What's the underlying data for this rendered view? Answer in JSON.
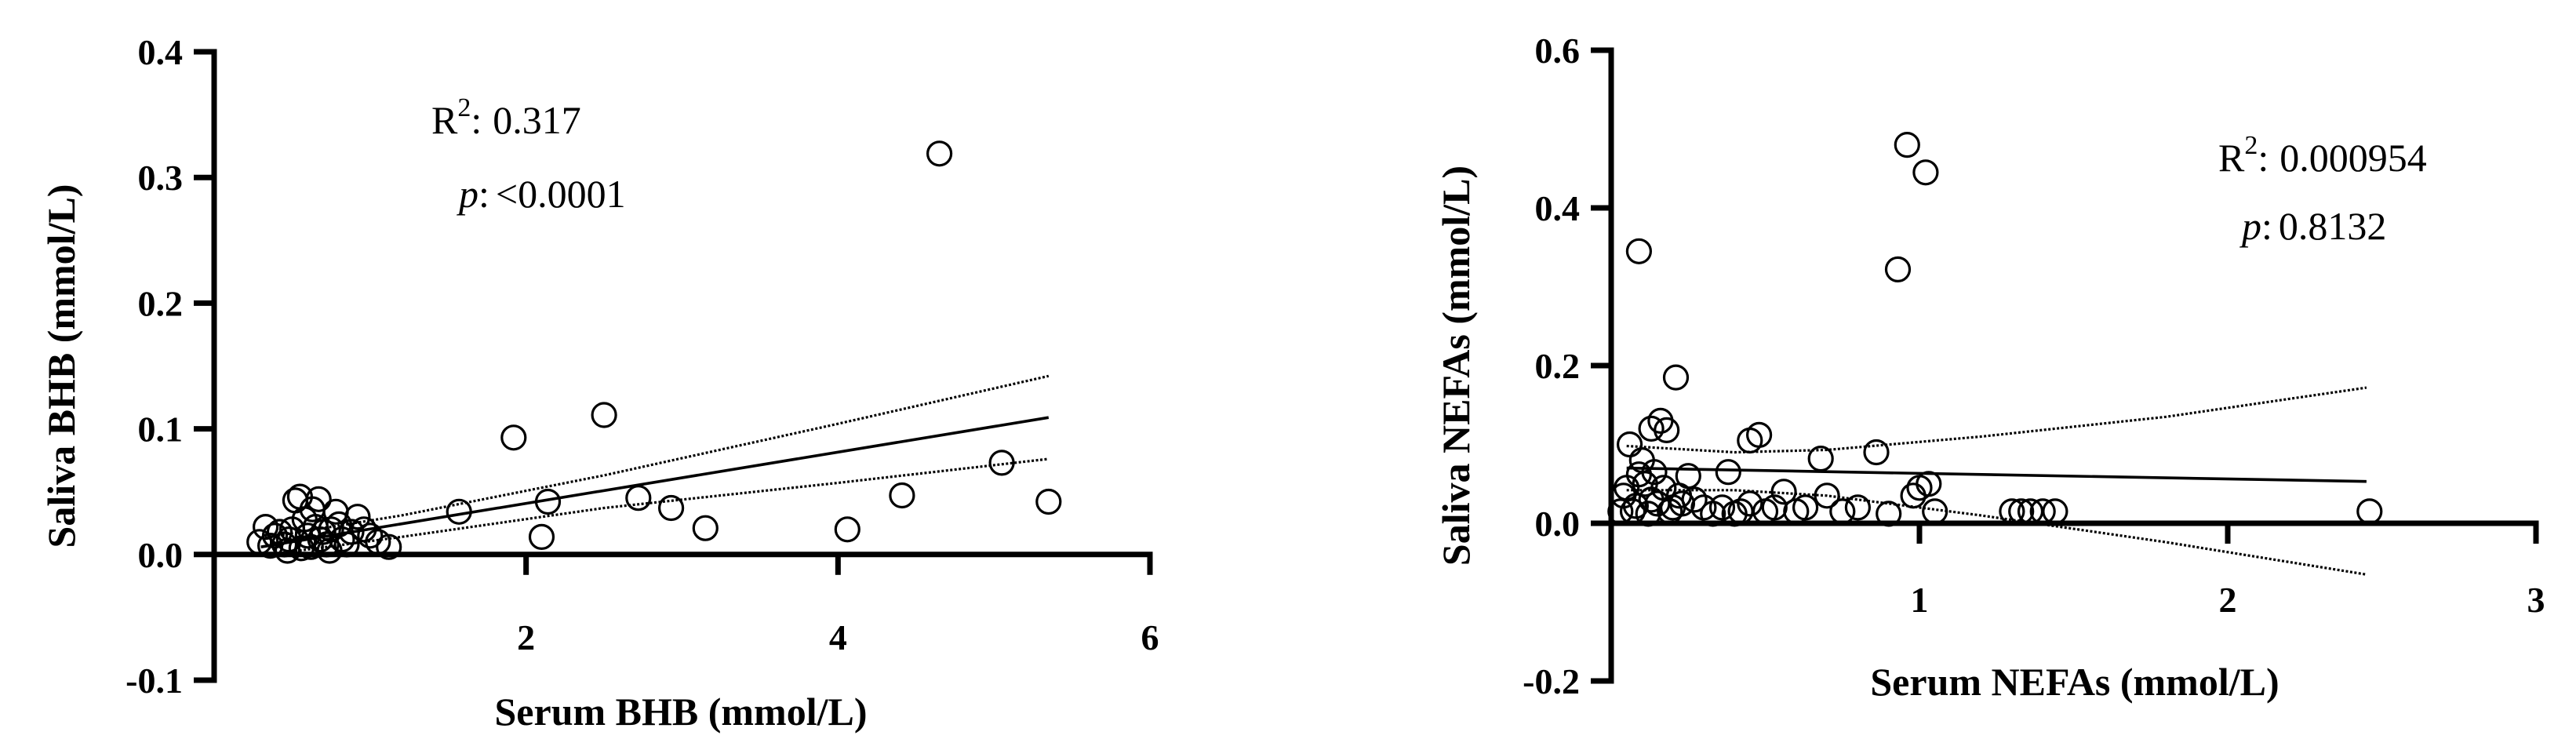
{
  "chart_data": [
    {
      "type": "scatter",
      "xlabel": "Serum BHB (mmol/L)",
      "ylabel": "Saliva BHB (mmol/L)",
      "xlim": [
        0,
        6
      ],
      "ylim": [
        -0.1,
        0.4
      ],
      "x_ticks": [
        "2",
        "4",
        "6"
      ],
      "y_ticks": [
        "-0.1",
        "0.0",
        "0.1",
        "0.2",
        "0.3",
        "0.4"
      ],
      "x_tick_values": [
        2,
        4,
        6
      ],
      "y_tick_values": [
        -0.1,
        0.0,
        0.1,
        0.2,
        0.3,
        0.4
      ],
      "stats": {
        "r2_label": "R",
        "r2_sup": "2",
        "r2_sep": ":",
        "r2_value": "0.317",
        "p_label": "p",
        "p_sep": ":",
        "p_value": "<0.0001"
      },
      "fit_line": {
        "x": [
          0.3,
          5.35
        ],
        "y": [
          0.006,
          0.109
        ]
      },
      "ci_upper": {
        "x": [
          0.3,
          1.2,
          2.5,
          4.0,
          5.35
        ],
        "y": [
          0.013,
          0.031,
          0.063,
          0.104,
          0.142
        ]
      },
      "ci_lower": {
        "x": [
          0.3,
          1.2,
          2.5,
          4.0,
          5.35
        ],
        "y": [
          -0.001,
          0.014,
          0.037,
          0.057,
          0.076
        ]
      },
      "series": [
        {
          "points": [
            [
              0.29,
              0.01
            ],
            [
              0.33,
              0.022
            ],
            [
              0.36,
              0.007
            ],
            [
              0.39,
              0.015
            ],
            [
              0.42,
              0.018
            ],
            [
              0.45,
              0.008
            ],
            [
              0.47,
              0.003
            ],
            [
              0.48,
              0.012
            ],
            [
              0.5,
              0.02
            ],
            [
              0.52,
              0.043
            ],
            [
              0.55,
              0.046
            ],
            [
              0.56,
              0.005
            ],
            [
              0.58,
              0.028
            ],
            [
              0.6,
              0.015
            ],
            [
              0.62,
              0.006
            ],
            [
              0.63,
              0.036
            ],
            [
              0.65,
              0.022
            ],
            [
              0.67,
              0.044
            ],
            [
              0.68,
              0.012
            ],
            [
              0.7,
              0.018
            ],
            [
              0.72,
              0.008
            ],
            [
              0.74,
              0.003
            ],
            [
              0.75,
              0.02
            ],
            [
              0.78,
              0.034
            ],
            [
              0.8,
              0.024
            ],
            [
              0.82,
              0.012
            ],
            [
              0.85,
              0.008
            ],
            [
              0.88,
              0.018
            ],
            [
              0.92,
              0.03
            ],
            [
              0.96,
              0.02
            ],
            [
              1.0,
              0.015
            ],
            [
              1.05,
              0.01
            ],
            [
              1.12,
              0.006
            ],
            [
              1.57,
              0.034
            ],
            [
              1.92,
              0.093
            ],
            [
              2.1,
              0.014
            ],
            [
              2.14,
              0.042
            ],
            [
              2.5,
              0.111
            ],
            [
              2.72,
              0.045
            ],
            [
              2.93,
              0.037
            ],
            [
              3.15,
              0.021
            ],
            [
              4.06,
              0.02
            ],
            [
              4.41,
              0.047
            ],
            [
              4.65,
              0.319
            ],
            [
              5.05,
              0.073
            ],
            [
              5.35,
              0.042
            ]
          ]
        }
      ]
    },
    {
      "type": "scatter",
      "xlabel": "Serum NEFAs (mmol/L)",
      "ylabel": "Saliva NEFAs (mmol/L)",
      "xlim": [
        0,
        3
      ],
      "ylim": [
        -0.2,
        0.6
      ],
      "x_ticks": [
        "1",
        "2",
        "3"
      ],
      "y_ticks": [
        "-0.2",
        "0.0",
        "0.2",
        "0.4",
        "0.6"
      ],
      "x_tick_values": [
        1,
        2,
        3
      ],
      "y_tick_values": [
        -0.2,
        0.0,
        0.2,
        0.4,
        0.6
      ],
      "stats": {
        "r2_label": "R",
        "r2_sup": "2",
        "r2_sep": ":",
        "r2_value": "0.000954",
        "p_label": "p",
        "p_sep": ":",
        "p_value": "0.8132"
      },
      "fit_line": {
        "x": [
          0.05,
          2.45
        ],
        "y": [
          0.07,
          0.053
        ]
      },
      "ci_upper": {
        "x": [
          0.05,
          0.4,
          0.7,
          1.2,
          1.8,
          2.45
        ],
        "y": [
          0.098,
          0.09,
          0.093,
          0.11,
          0.135,
          0.172
        ]
      },
      "ci_lower": {
        "x": [
          0.05,
          0.4,
          0.7,
          1.2,
          1.8,
          2.45
        ],
        "y": [
          0.042,
          0.042,
          0.035,
          0.01,
          -0.024,
          -0.065
        ]
      },
      "series": [
        {
          "points": [
            [
              0.03,
              0.015
            ],
            [
              0.04,
              0.035
            ],
            [
              0.05,
              0.045
            ],
            [
              0.06,
              0.1
            ],
            [
              0.07,
              0.015
            ],
            [
              0.08,
              0.022
            ],
            [
              0.09,
              0.062
            ],
            [
              0.09,
              0.345
            ],
            [
              0.1,
              0.08
            ],
            [
              0.11,
              0.05
            ],
            [
              0.12,
              0.012
            ],
            [
              0.13,
              0.03
            ],
            [
              0.13,
              0.12
            ],
            [
              0.14,
              0.065
            ],
            [
              0.15,
              0.025
            ],
            [
              0.16,
              0.13
            ],
            [
              0.17,
              0.045
            ],
            [
              0.18,
              0.118
            ],
            [
              0.19,
              0.015
            ],
            [
              0.2,
              0.02
            ],
            [
              0.21,
              0.185
            ],
            [
              0.22,
              0.035
            ],
            [
              0.23,
              0.025
            ],
            [
              0.25,
              0.06
            ],
            [
              0.27,
              0.03
            ],
            [
              0.3,
              0.02
            ],
            [
              0.33,
              0.012
            ],
            [
              0.36,
              0.02
            ],
            [
              0.38,
              0.065
            ],
            [
              0.4,
              0.012
            ],
            [
              0.42,
              0.015
            ],
            [
              0.45,
              0.025
            ],
            [
              0.45,
              0.105
            ],
            [
              0.48,
              0.112
            ],
            [
              0.5,
              0.015
            ],
            [
              0.53,
              0.02
            ],
            [
              0.56,
              0.04
            ],
            [
              0.6,
              0.015
            ],
            [
              0.63,
              0.02
            ],
            [
              0.68,
              0.082
            ],
            [
              0.7,
              0.035
            ],
            [
              0.75,
              0.015
            ],
            [
              0.8,
              0.02
            ],
            [
              0.86,
              0.09
            ],
            [
              0.9,
              0.012
            ],
            [
              0.93,
              0.322
            ],
            [
              0.96,
              0.48
            ],
            [
              0.98,
              0.035
            ],
            [
              1.0,
              0.045
            ],
            [
              1.02,
              0.445
            ],
            [
              1.03,
              0.05
            ],
            [
              1.05,
              0.015
            ],
            [
              1.3,
              0.015
            ],
            [
              1.33,
              0.015
            ],
            [
              1.36,
              0.015
            ],
            [
              1.4,
              0.015
            ],
            [
              1.44,
              0.015
            ],
            [
              2.46,
              0.015
            ]
          ]
        }
      ]
    }
  ]
}
